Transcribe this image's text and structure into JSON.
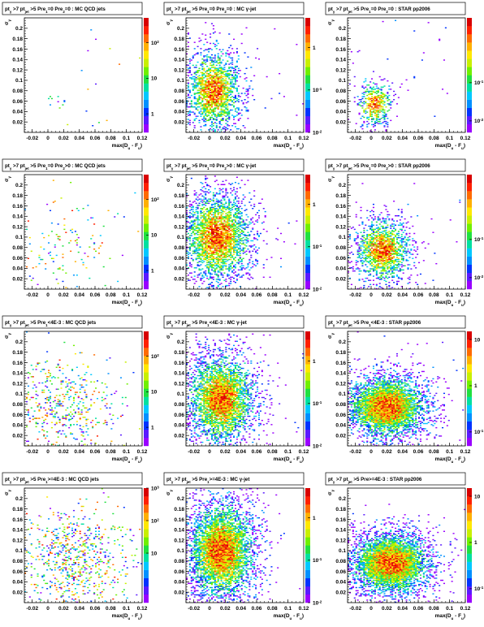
{
  "chart_data": [
    {
      "type": "heatmap",
      "title": "pt_{γ} >7 pt_{jet} >5 Pre_{1}=0 Pre_{2}=0 : MC QCD jets",
      "xlabel": "max(D_{u} - F_{u})",
      "ylabel": "σ_{γ}",
      "xlim": [
        -0.03,
        0.12
      ],
      "ylim": [
        0,
        0.22
      ],
      "zlim": [
        0.3,
        500
      ],
      "z_ticks": [
        1,
        10,
        "10^{2}"
      ],
      "z_log": true,
      "density_center": [
        0.01,
        0.055
      ],
      "density_spread": [
        0.01,
        0.01
      ],
      "density_level": 0.04
    },
    {
      "type": "heatmap",
      "title": "pt_{γ} >7 pt_{jet} >5 Pre_{1}=0 Pre_{2}=0 : MC γ-jet",
      "xlabel": "max(D_{u} - F_{u})",
      "ylabel": "σ_{γ}",
      "xlim": [
        -0.03,
        0.12
      ],
      "ylim": [
        0,
        0.22
      ],
      "zlim": [
        0.01,
        5
      ],
      "z_ticks": [
        "10^{-2}",
        "10^{-1}",
        1
      ],
      "z_log": true,
      "density_center": [
        0.005,
        0.08
      ],
      "density_spread": [
        0.02,
        0.045
      ],
      "density_level": 0.55
    },
    {
      "type": "heatmap",
      "title": "pt_{γ} >7 pt_{jet} >5 Pre_{1}=0 Pre_{2}=0 : STAR pp2006",
      "xlabel": "max(D_{u} - F_{u})",
      "ylabel": "σ_{γ}",
      "xlim": [
        -0.03,
        0.12
      ],
      "ylim": [
        0,
        0.22
      ],
      "zlim": [
        0.005,
        5
      ],
      "z_ticks": [
        "10^{-2}",
        "10^{-1}"
      ],
      "z_log": true,
      "density_center": [
        0.005,
        0.055
      ],
      "density_spread": [
        0.012,
        0.025
      ],
      "density_level": 0.45
    },
    {
      "type": "heatmap",
      "title": "pt_{γ} >7 pt_{jet} >5 Pre_{1}=0 Pre_{2}>0 : MC QCD jets",
      "xlabel": "max(D_{u} - F_{u})",
      "ylabel": "σ_{γ}",
      "xlim": [
        -0.03,
        0.12
      ],
      "ylim": [
        0,
        0.22
      ],
      "zlim": [
        0.3,
        500
      ],
      "z_ticks": [
        1,
        10,
        "10^{2}"
      ],
      "z_log": true,
      "density_center": [
        0.02,
        0.08
      ],
      "density_spread": [
        0.03,
        0.04
      ],
      "density_level": 0.04
    },
    {
      "type": "heatmap",
      "title": "pt_{γ} >7 pt_{jet} >5 Pre_{1}=0 Pre_{2}>0 : MC γ-jet",
      "xlabel": "max(D_{u} - F_{u})",
      "ylabel": "σ_{γ}",
      "xlim": [
        -0.03,
        0.12
      ],
      "ylim": [
        0,
        0.22
      ],
      "zlim": [
        0.01,
        5
      ],
      "z_ticks": [
        "10^{-2}",
        "10^{-1}",
        1
      ],
      "z_log": true,
      "density_center": [
        0.01,
        0.1
      ],
      "density_spread": [
        0.025,
        0.05
      ],
      "density_level": 0.6
    },
    {
      "type": "heatmap",
      "title": "pt_{γ} >7 pt_{jet} >5 Pre_{1}=0 Pre_{2}>0 : STAR pp2006",
      "xlabel": "max(D_{u} - F_{u})",
      "ylabel": "σ_{γ}",
      "xlim": [
        -0.03,
        0.12
      ],
      "ylim": [
        0,
        0.22
      ],
      "zlim": [
        0.005,
        5
      ],
      "z_ticks": [
        "10^{-2}",
        "10^{-1}"
      ],
      "z_log": true,
      "density_center": [
        0.015,
        0.075
      ],
      "density_spread": [
        0.02,
        0.035
      ],
      "density_level": 0.6
    },
    {
      "type": "heatmap",
      "title": "pt_{γ} >7 pt_{jet} >5 Pre_{1}<4E-3 : MC QCD jets",
      "xlabel": "max(D_{u} - F_{u})",
      "ylabel": "σ_{γ}",
      "xlim": [
        -0.03,
        0.12
      ],
      "ylim": [
        0,
        0.22
      ],
      "zlim": [
        0.3,
        500
      ],
      "z_ticks": [
        1,
        10,
        "10^{2}"
      ],
      "z_log": true,
      "density_center": [
        0.02,
        0.08
      ],
      "density_spread": [
        0.035,
        0.045
      ],
      "density_level": 0.12
    },
    {
      "type": "heatmap",
      "title": "pt_{γ} >7 pt_{jet} >5 Pre_{1}<4E-3 : MC γ-jet",
      "xlabel": "max(D_{u} - F_{u})",
      "ylabel": "σ_{γ}",
      "xlim": [
        -0.03,
        0.12
      ],
      "ylim": [
        0,
        0.22
      ],
      "zlim": [
        0.01,
        5
      ],
      "z_ticks": [
        "10^{-2}",
        "10^{-1}",
        1
      ],
      "z_log": true,
      "density_center": [
        0.015,
        0.09
      ],
      "density_spread": [
        0.025,
        0.05
      ],
      "density_level": 0.7
    },
    {
      "type": "heatmap",
      "title": "pt_{γ} >7 pt_{jet} >5 Pre_{1}<4E-3 : STAR pp2006",
      "xlabel": "max(D_{u} - F_{u})",
      "ylabel": "σ_{γ}",
      "xlim": [
        -0.03,
        0.12
      ],
      "ylim": [
        0,
        0.22
      ],
      "zlim": [
        0.05,
        15
      ],
      "z_ticks": [
        "10^{-1}",
        1,
        10
      ],
      "z_log": true,
      "density_center": [
        0.02,
        0.075
      ],
      "density_spread": [
        0.03,
        0.035
      ],
      "density_level": 0.9
    },
    {
      "type": "heatmap",
      "title": "pt_{γ} >7 pt_{jet} >5 Pre_{1}>=4E-3 : MC QCD jets",
      "xlabel": "max(D_{u} - F_{u})",
      "ylabel": "σ_{γ}",
      "xlim": [
        -0.03,
        0.12
      ],
      "ylim": [
        0,
        0.22
      ],
      "zlim": [
        0.3,
        1000
      ],
      "z_ticks": [
        10,
        "10^{2}",
        "10^{3}"
      ],
      "z_log": true,
      "density_center": [
        0.03,
        0.08
      ],
      "density_spread": [
        0.04,
        0.05
      ],
      "density_level": 0.14
    },
    {
      "type": "heatmap",
      "title": "pt_{γ} >7 pt_{jet} >5 Pre_{1}>=4E-3 : MC γ-jet",
      "xlabel": "max(D_{u} - F_{u})",
      "ylabel": "σ_{γ}",
      "xlim": [
        -0.03,
        0.12
      ],
      "ylim": [
        0,
        0.22
      ],
      "zlim": [
        0.01,
        5
      ],
      "z_ticks": [
        "10^{-2}",
        "10^{-1}",
        1
      ],
      "z_log": true,
      "density_center": [
        0.015,
        0.1
      ],
      "density_spread": [
        0.025,
        0.055
      ],
      "density_level": 0.75
    },
    {
      "type": "heatmap",
      "title": "pt_{γ} >7 pt_{jet} >5 Pre>=4E-3 : STAR pp2006",
      "xlabel": "max(D_{u} - F_{u})",
      "ylabel": "σ_{γ}",
      "xlim": [
        -0.03,
        0.12
      ],
      "ylim": [
        0,
        0.22
      ],
      "zlim": [
        0.05,
        15
      ],
      "z_ticks": [
        "10^{-1}",
        1,
        10
      ],
      "z_log": true,
      "density_center": [
        0.025,
        0.075
      ],
      "density_spread": [
        0.03,
        0.035
      ],
      "density_level": 0.95
    }
  ],
  "x_ticks": [
    "-0.02",
    "0",
    "0.02",
    "0.04",
    "0.06",
    "0.08",
    "0.1",
    "0.12"
  ],
  "y_ticks": [
    "0.02",
    "0.04",
    "0.06",
    "0.08",
    "0.1",
    "0.12",
    "0.14",
    "0.16",
    "0.18",
    "0.2"
  ],
  "palette": [
    "#9900ff",
    "#5a1aff",
    "#0033ff",
    "#0090ff",
    "#00c8ff",
    "#00e0a0",
    "#20e040",
    "#70f000",
    "#c8f000",
    "#ffe800",
    "#ffb000",
    "#ff6a00",
    "#ff2000",
    "#d80000"
  ]
}
